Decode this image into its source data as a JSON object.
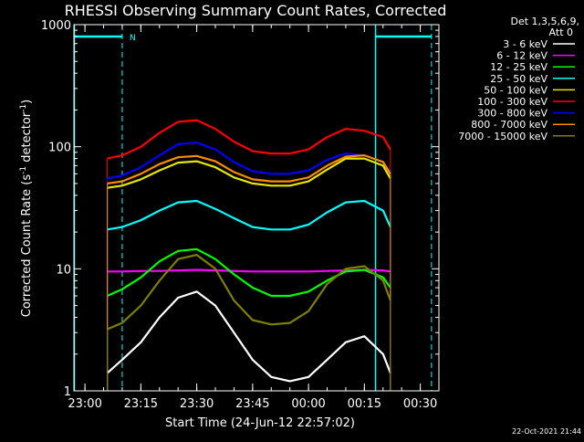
{
  "chart_data": {
    "type": "line",
    "title": "RHESSI Observing Summary Count Rates, Corrected",
    "xlabel": "Start Time (24-Jun-12 22:57:02)",
    "ylabel": "Corrected Count Rate (s",
    "ylabel_sup1": "-1",
    "ylabel_mid": " detector",
    "ylabel_sup2": "-1",
    "ylabel_end": ")",
    "yscale": "log",
    "ylim": [
      1,
      1000
    ],
    "xlim": [
      "22:57:02",
      "00:35:00"
    ],
    "x_tick_labels": [
      "23:00",
      "23:15",
      "23:30",
      "23:45",
      "00:00",
      "00:15",
      "00:30"
    ],
    "y_tick_labels": [
      "1",
      "10",
      "100",
      "1000"
    ],
    "detector_header": "Det 1,3,5,6,9,",
    "attenuator_header": "Att 0",
    "footer_date": "22-Oct-2021 21:44",
    "night_marker_label": "N",
    "night_marker_color": "#00ffff",
    "x_times": [
      "23:06",
      "23:10",
      "23:15",
      "23:20",
      "23:25",
      "23:30",
      "23:35",
      "23:40",
      "23:45",
      "23:50",
      "23:55",
      "00:00",
      "00:05",
      "00:10",
      "00:15",
      "00:20",
      "00:22"
    ],
    "series": [
      {
        "name": "3 - 6 keV",
        "color": "#ffffff",
        "values": [
          1.4,
          1.8,
          2.5,
          4.0,
          5.8,
          6.5,
          5.0,
          3.0,
          1.8,
          1.3,
          1.2,
          1.3,
          1.8,
          2.5,
          2.8,
          2.0,
          1.4
        ]
      },
      {
        "name": "6 - 12 keV",
        "color": "#ff00ff",
        "values": [
          9.5,
          9.5,
          9.6,
          9.6,
          9.7,
          9.8,
          9.7,
          9.6,
          9.5,
          9.5,
          9.5,
          9.5,
          9.6,
          9.7,
          9.8,
          9.7,
          9.5
        ]
      },
      {
        "name": "12 - 25 keV",
        "color": "#00ff00",
        "values": [
          6.0,
          6.8,
          8.5,
          11.5,
          14.0,
          14.5,
          12.0,
          9.0,
          7.0,
          6.0,
          6.0,
          6.5,
          8.0,
          9.5,
          9.8,
          8.5,
          7.0
        ]
      },
      {
        "name": "25 - 50 keV",
        "color": "#00ffff",
        "values": [
          21,
          22,
          25,
          30,
          35,
          36,
          31,
          26,
          22,
          21,
          21,
          23,
          29,
          35,
          36,
          30,
          22
        ]
      },
      {
        "name": "50 - 100 keV",
        "color": "#e6e600",
        "values": [
          46,
          48,
          54,
          64,
          74,
          76,
          68,
          56,
          50,
          48,
          48,
          52,
          65,
          80,
          80,
          70,
          55
        ]
      },
      {
        "name": "100 - 300 keV",
        "color": "#ff0000",
        "values": [
          80,
          85,
          100,
          130,
          160,
          165,
          140,
          110,
          92,
          88,
          88,
          95,
          120,
          140,
          135,
          120,
          95
        ]
      },
      {
        "name": "300 - 800 keV",
        "color": "#0000ff",
        "values": [
          55,
          58,
          68,
          85,
          105,
          108,
          95,
          75,
          63,
          60,
          60,
          64,
          78,
          88,
          85,
          75,
          62
        ]
      },
      {
        "name": "800 - 7000 keV",
        "color": "#ff8c00",
        "values": [
          50,
          52,
          60,
          72,
          82,
          84,
          76,
          62,
          54,
          52,
          52,
          56,
          70,
          83,
          85,
          75,
          60
        ]
      },
      {
        "name": "7000 - 15000 keV",
        "color": "#808000",
        "values": [
          3.2,
          3.6,
          5.0,
          8.0,
          12.0,
          13.0,
          10.0,
          5.5,
          3.8,
          3.5,
          3.6,
          4.5,
          7.5,
          10.0,
          10.5,
          8.0,
          5.5
        ]
      }
    ]
  }
}
